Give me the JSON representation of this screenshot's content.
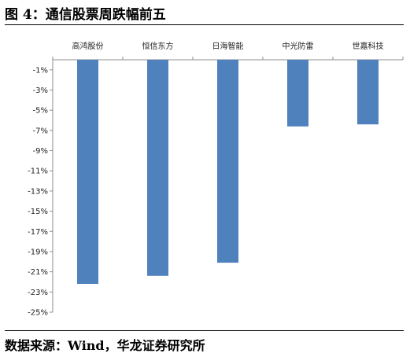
{
  "title": "图 4：通信股票周跌幅前五",
  "source": "数据来源：Wind，华龙证券研究所",
  "chart_data": {
    "type": "bar",
    "title": "",
    "xlabel": "",
    "ylabel": "",
    "categories": [
      "高鸿股份",
      "恒信东方",
      "日海智能",
      "中光防雷",
      "世嘉科技"
    ],
    "values": [
      -22.2,
      -21.4,
      -20.1,
      -6.6,
      -6.4
    ],
    "ylim": [
      -25,
      0
    ],
    "yticks": [
      -1,
      -3,
      -5,
      -7,
      -9,
      -11,
      -13,
      -15,
      -17,
      -19,
      -21,
      -23,
      -25
    ],
    "ytick_labels": [
      "-1%",
      "-3%",
      "-5%",
      "-7%",
      "-9%",
      "-11%",
      "-13%",
      "-15%",
      "-17%",
      "-19%",
      "-21%",
      "-23%",
      "-25%"
    ],
    "x_axis_position": "top",
    "grid": false,
    "legend": "none",
    "bar_color": "#4f81bd",
    "axis_color": "#8c8c8c"
  }
}
